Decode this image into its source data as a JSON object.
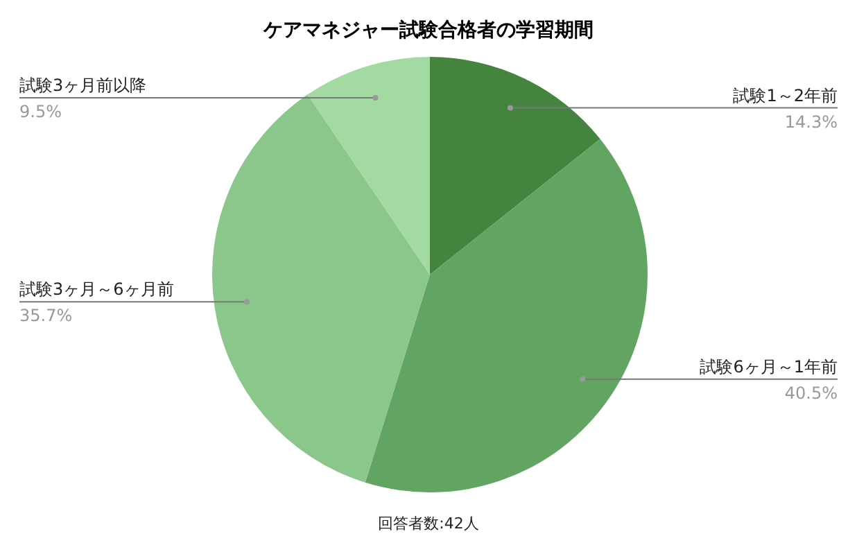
{
  "chart_data": {
    "type": "pie",
    "title": "ケアマネジャー試験合格者の学習期間",
    "categories": [
      "試験1～2年前",
      "試験6ヶ月～1年前",
      "試験3ヶ月～6ヶ月前",
      "試験3ヶ月前以降"
    ],
    "values": [
      14.3,
      40.5,
      35.7,
      9.5
    ],
    "value_labels": [
      "14.3%",
      "40.5%",
      "35.7%",
      "9.5%"
    ],
    "colors": [
      "#45843f",
      "#62a462",
      "#8bc68b",
      "#a3daa2"
    ],
    "annotations": [
      "回答者数:42人"
    ]
  }
}
